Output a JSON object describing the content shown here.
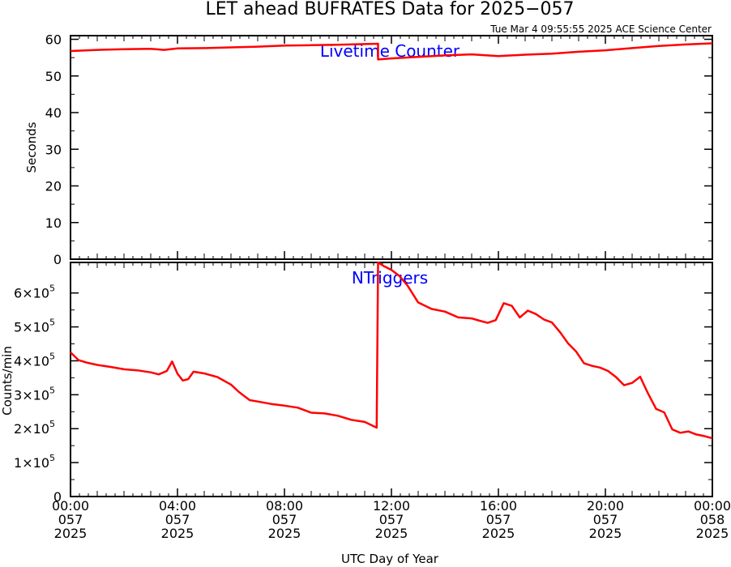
{
  "chart_data": [
    {
      "type": "line",
      "title": "LET ahead BUFRATES Data for 2025−057",
      "subtitle": "Tue Mar  4 09:55:55 2025 ACE Science Center",
      "panel_label": "Livetime Counter",
      "ylabel": "Seconds",
      "ylim": [
        0,
        61
      ],
      "yticks": [
        "0",
        "10",
        "20",
        "30",
        "40",
        "50",
        "60"
      ],
      "ytick_values": [
        0,
        10,
        20,
        30,
        40,
        50,
        60
      ],
      "xlim": [
        0,
        24
      ],
      "color": "#ff0000",
      "series": [
        {
          "x": [
            0,
            1,
            2,
            3,
            3.5,
            4,
            5,
            6,
            7,
            8,
            9,
            10,
            11,
            11.5,
            11.5,
            12,
            13,
            14,
            15,
            16,
            17,
            18,
            19,
            20,
            21,
            22,
            23,
            24
          ],
          "values": [
            56.8,
            57.1,
            57.3,
            57.4,
            57.1,
            57.5,
            57.6,
            57.8,
            58.0,
            58.3,
            58.4,
            58.5,
            58.7,
            58.8,
            54.5,
            54.8,
            55.2,
            55.6,
            55.9,
            55.4,
            55.8,
            56.1,
            56.6,
            57.0,
            57.6,
            58.2,
            58.6,
            58.9
          ]
        }
      ]
    },
    {
      "type": "line",
      "panel_label": "NTriggers",
      "ylabel": "Counts/min",
      "ylim": [
        0,
        690000
      ],
      "yticks": [
        "0",
        "1×10",
        "2×10",
        "3×10",
        "4×10",
        "5×10",
        "6×10"
      ],
      "ytick_exponent": "5",
      "ytick_values": [
        0,
        100000,
        200000,
        300000,
        400000,
        500000,
        600000
      ],
      "xlabel": "UTC Day of Year",
      "xlim": [
        0,
        24
      ],
      "xticks": [
        {
          "x": 0,
          "time": "00:00",
          "doy": "057",
          "year": "2025"
        },
        {
          "x": 4,
          "time": "04:00",
          "doy": "057",
          "year": "2025"
        },
        {
          "x": 8,
          "time": "08:00",
          "doy": "057",
          "year": "2025"
        },
        {
          "x": 12,
          "time": "12:00",
          "doy": "057",
          "year": "2025"
        },
        {
          "x": 16,
          "time": "16:00",
          "doy": "057",
          "year": "2025"
        },
        {
          "x": 20,
          "time": "20:00",
          "doy": "057",
          "year": "2025"
        },
        {
          "x": 24,
          "time": "00:00",
          "doy": "058",
          "year": "2025"
        }
      ],
      "color": "#ff0000",
      "series": [
        {
          "x": [
            0,
            0.3,
            0.6,
            1.0,
            1.5,
            2.0,
            2.5,
            3.0,
            3.3,
            3.6,
            3.8,
            4.0,
            4.2,
            4.4,
            4.6,
            5.0,
            5.5,
            6.0,
            6.3,
            6.7,
            7.0,
            7.5,
            8.0,
            8.5,
            9.0,
            9.5,
            10.0,
            10.5,
            11.0,
            11.45,
            11.5,
            11.7,
            12.0,
            12.3,
            12.6,
            13.0,
            13.5,
            14.0,
            14.5,
            15.0,
            15.3,
            15.6,
            15.9,
            16.2,
            16.5,
            16.8,
            17.1,
            17.4,
            17.7,
            18.0,
            18.3,
            18.6,
            18.9,
            19.2,
            19.5,
            19.8,
            20.1,
            20.4,
            20.7,
            21.0,
            21.3,
            21.6,
            21.9,
            22.2,
            22.5,
            22.8,
            23.1,
            23.4,
            23.7,
            24.0
          ],
          "values": [
            425000,
            402000,
            395000,
            388000,
            382000,
            375000,
            372000,
            366000,
            360000,
            370000,
            398000,
            362000,
            342000,
            346000,
            368000,
            363000,
            352000,
            330000,
            308000,
            284000,
            280000,
            273000,
            268000,
            262000,
            247000,
            245000,
            238000,
            226000,
            220000,
            203000,
            690000,
            680000,
            668000,
            650000,
            622000,
            572000,
            553000,
            545000,
            528000,
            525000,
            518000,
            512000,
            520000,
            570000,
            562000,
            528000,
            548000,
            538000,
            522000,
            513000,
            485000,
            452000,
            428000,
            393000,
            385000,
            380000,
            370000,
            352000,
            328000,
            335000,
            353000,
            303000,
            258000,
            248000,
            198000,
            188000,
            192000,
            183000,
            178000,
            172000
          ]
        }
      ]
    }
  ]
}
